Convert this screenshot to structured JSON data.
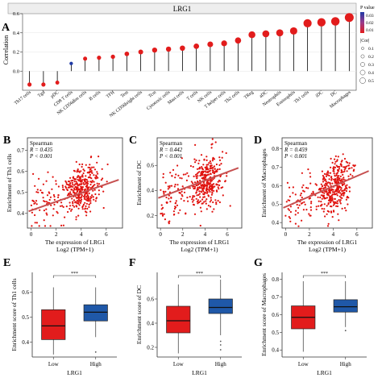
{
  "colors": {
    "pvalue_high": "#e21c1c",
    "pvalue_low": "#1f3aa6",
    "scatter_points": "#e0120e",
    "scatter_fit": "#c65050",
    "box_low": "#e21c1c",
    "box_high": "#1f58a8",
    "stem": "#000000"
  },
  "chart_data": [
    {
      "panel": "A",
      "type": "lollipop",
      "title": "LRG1",
      "ylabel": "Correlation",
      "ylim": [
        -0.2,
        0.6
      ],
      "yticks": [
        "0.0",
        "0.2",
        "0.4",
        "0.6"
      ],
      "ytick_values": [
        0.0,
        0.2,
        0.4,
        0.6
      ],
      "categories": [
        "Th17 cells",
        "Tgd",
        "pDC",
        "CD8 T cells",
        "NK CD56dim cells",
        "B cells",
        "TFH",
        "Tem",
        "NK CD56bright cells",
        "Tcm",
        "Cytotoxic cells",
        "Mast cells",
        "T cells",
        "NK cells",
        "T helper cells",
        "Th2 cells",
        "TReg",
        "aDC",
        "Neutrophils",
        "Eosinophils",
        "Th1 cells",
        "iDC",
        "DC",
        "Macrophages"
      ],
      "values": [
        -0.14,
        -0.14,
        -0.12,
        0.08,
        0.13,
        0.14,
        0.15,
        0.18,
        0.2,
        0.22,
        0.23,
        0.24,
        0.26,
        0.28,
        0.29,
        0.32,
        0.38,
        0.39,
        0.4,
        0.42,
        0.5,
        0.51,
        0.52,
        0.56
      ],
      "legend_pvalue_title": "P value",
      "legend_pvalue_ticks": [
        "0.03",
        "0.02",
        "0.01"
      ],
      "legend_size_title": "|Cor|",
      "legend_size_ticks": [
        "0.1",
        "0.2",
        "0.3",
        "0.4",
        "0.5"
      ]
    },
    {
      "panel": "B",
      "type": "scatter",
      "annotation": [
        "Spearman",
        "R = 0.435",
        "P < 0.001"
      ],
      "ylabel": "Enrichment of Th1 cells",
      "xlabel_line1": "The expression of LRG1",
      "xlabel_line2": "Log2 (TPM+1)",
      "xticks": [
        "0",
        "2",
        "4",
        "6"
      ],
      "xtick_values": [
        0,
        2,
        4,
        6
      ],
      "yticks": [
        "0.4",
        "0.5",
        "0.6",
        "0.7"
      ],
      "ytick_values": [
        0.4,
        0.5,
        0.6,
        0.7
      ],
      "xlim": [
        -0.3,
        7.3
      ],
      "ylim": [
        0.33,
        0.76
      ],
      "fit_x": [
        -0.2,
        7.0
      ],
      "fit_y": [
        0.41,
        0.56
      ],
      "cloud": {
        "x_center": 4.1,
        "x_spread": 1.4,
        "y_at_x0": 0.43,
        "slope": 0.021,
        "noise": 0.06,
        "low_x_fraction": 0.15,
        "n": 420
      }
    },
    {
      "panel": "C",
      "type": "scatter",
      "annotation": [
        "Spearman",
        "R = 0.442",
        "P < 0.001"
      ],
      "ylabel": "Enrichment of DC",
      "xlabel_line1": "The expression of LRG1",
      "xlabel_line2": "Log2 (TPM+1)",
      "xticks": [
        "0",
        "2",
        "4",
        "6"
      ],
      "xtick_values": [
        0,
        2,
        4,
        6
      ],
      "yticks": [
        "0.2",
        "0.4",
        "0.6"
      ],
      "ytick_values": [
        0.2,
        0.4,
        0.6
      ],
      "xlim": [
        -0.3,
        7.3
      ],
      "ylim": [
        0.1,
        0.82
      ],
      "fit_x": [
        -0.2,
        7.0
      ],
      "fit_y": [
        0.34,
        0.58
      ],
      "cloud": {
        "x_center": 4.1,
        "x_spread": 1.4,
        "y_at_x0": 0.33,
        "slope": 0.035,
        "noise": 0.1,
        "low_x_fraction": 0.15,
        "n": 420
      }
    },
    {
      "panel": "D",
      "type": "scatter",
      "annotation": [
        "Spearman",
        "R = 0.459",
        "P < 0.001"
      ],
      "ylabel": "Enrichment of Macrophages",
      "xlabel_line1": "The expression of LRG1",
      "xlabel_line2": "Log2 (TPM+1)",
      "xticks": [
        "0",
        "2",
        "4",
        "6"
      ],
      "xtick_values": [
        0,
        2,
        4,
        6
      ],
      "yticks": [
        "0.4",
        "0.5",
        "0.6",
        "0.7",
        "0.8"
      ],
      "ytick_values": [
        0.4,
        0.5,
        0.6,
        0.7,
        0.8
      ],
      "xlim": [
        -0.3,
        7.3
      ],
      "ylim": [
        0.37,
        0.86
      ],
      "fit_x": [
        -0.2,
        7.0
      ],
      "fit_y": [
        0.48,
        0.68
      ],
      "cloud": {
        "x_center": 4.1,
        "x_spread": 1.4,
        "y_at_x0": 0.47,
        "slope": 0.029,
        "noise": 0.07,
        "low_x_fraction": 0.15,
        "n": 420
      }
    },
    {
      "panel": "E",
      "type": "box",
      "ylabel": "Enrichment score of Th1 cells",
      "xlabel": "LRG1",
      "categories": [
        "Low",
        "High"
      ],
      "significance": "***",
      "yticks": [
        "0.4",
        "0.5",
        "0.6"
      ],
      "ytick_values": [
        0.4,
        0.5,
        0.6
      ],
      "ylim": [
        0.34,
        0.68
      ],
      "boxes": [
        {
          "min": 0.35,
          "q1": 0.41,
          "median": 0.465,
          "q3": 0.53,
          "max": 0.62,
          "outliers": []
        },
        {
          "min": 0.42,
          "q1": 0.485,
          "median": 0.52,
          "q3": 0.55,
          "max": 0.62,
          "outliers": [
            0.36
          ]
        }
      ]
    },
    {
      "panel": "F",
      "type": "box",
      "ylabel": "Enrichment score of DC",
      "xlabel": "LRG1",
      "categories": [
        "Low",
        "High"
      ],
      "significance": "***",
      "yticks": [
        "0.2",
        "0.4",
        "0.6"
      ],
      "ytick_values": [
        0.2,
        0.4,
        0.6
      ],
      "ylim": [
        0.12,
        0.82
      ],
      "boxes": [
        {
          "min": 0.15,
          "q1": 0.32,
          "median": 0.42,
          "q3": 0.54,
          "max": 0.72,
          "outliers": []
        },
        {
          "min": 0.3,
          "q1": 0.48,
          "median": 0.53,
          "q3": 0.6,
          "max": 0.76,
          "outliers": [
            0.25,
            0.22,
            0.18
          ]
        }
      ]
    },
    {
      "panel": "G",
      "type": "box",
      "ylabel": "Enrichment score of Macrophages",
      "xlabel": "LRG1",
      "categories": [
        "Low",
        "High"
      ],
      "significance": "***",
      "yticks": [
        "0.4",
        "0.5",
        "0.6",
        "0.7",
        "0.8"
      ],
      "ytick_values": [
        0.4,
        0.5,
        0.6,
        0.7,
        0.8
      ],
      "ylim": [
        0.36,
        0.84
      ],
      "boxes": [
        {
          "min": 0.39,
          "q1": 0.52,
          "median": 0.585,
          "q3": 0.65,
          "max": 0.79,
          "outliers": []
        },
        {
          "min": 0.53,
          "q1": 0.615,
          "median": 0.645,
          "q3": 0.685,
          "max": 0.79,
          "outliers": [
            0.51
          ]
        }
      ]
    }
  ]
}
